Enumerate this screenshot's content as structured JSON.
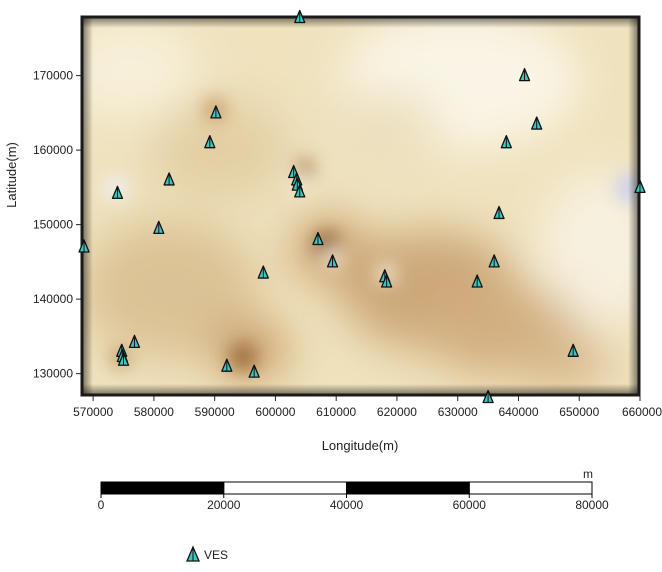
{
  "map": {
    "x_axis": {
      "label": "Longitude(m)",
      "min": 568000,
      "max": 660000,
      "ticks": [
        "570000",
        "580000",
        "590000",
        "600000",
        "610000",
        "620000",
        "630000",
        "640000",
        "650000",
        "660000"
      ],
      "tick_values": [
        570000,
        580000,
        590000,
        600000,
        610000,
        620000,
        630000,
        640000,
        650000,
        660000
      ]
    },
    "y_axis": {
      "label": "Latitude(m)",
      "min": 127000,
      "max": 178000,
      "ticks": [
        "130000",
        "140000",
        "150000",
        "160000",
        "170000"
      ],
      "tick_values": [
        130000,
        140000,
        150000,
        160000,
        170000
      ]
    },
    "colors": {
      "surface_base": "#efe2bd",
      "surface_dark": "#b58a52",
      "surface_light": "#fbf7ea",
      "surface_blue": "#dde0f6",
      "marker_fill": "#3fc6c0",
      "marker_stroke": "#111111",
      "frame": "#1a1a1a"
    },
    "ves_points": [
      {
        "x": 604000,
        "y": 177800
      },
      {
        "x": 641000,
        "y": 170000
      },
      {
        "x": 590200,
        "y": 165000
      },
      {
        "x": 643000,
        "y": 163500
      },
      {
        "x": 589200,
        "y": 161000
      },
      {
        "x": 638000,
        "y": 161000
      },
      {
        "x": 603000,
        "y": 157000
      },
      {
        "x": 603500,
        "y": 156000
      },
      {
        "x": 582500,
        "y": 156000
      },
      {
        "x": 603600,
        "y": 155300
      },
      {
        "x": 604000,
        "y": 154400
      },
      {
        "x": 574000,
        "y": 154200
      },
      {
        "x": 660000,
        "y": 155000
      },
      {
        "x": 636800,
        "y": 151500
      },
      {
        "x": 580800,
        "y": 149500
      },
      {
        "x": 607000,
        "y": 148000
      },
      {
        "x": 568500,
        "y": 147000
      },
      {
        "x": 609400,
        "y": 145000
      },
      {
        "x": 636000,
        "y": 145000
      },
      {
        "x": 598000,
        "y": 143500
      },
      {
        "x": 618000,
        "y": 143000
      },
      {
        "x": 618300,
        "y": 142300
      },
      {
        "x": 633200,
        "y": 142300
      },
      {
        "x": 576800,
        "y": 134200
      },
      {
        "x": 574700,
        "y": 133000
      },
      {
        "x": 574800,
        "y": 132300
      },
      {
        "x": 575000,
        "y": 131800
      },
      {
        "x": 649000,
        "y": 133000
      },
      {
        "x": 592000,
        "y": 131000
      },
      {
        "x": 596500,
        "y": 130200
      },
      {
        "x": 635000,
        "y": 126800
      }
    ]
  },
  "scale_bar": {
    "unit": "m",
    "max": 80000,
    "labels": [
      "0",
      "20000",
      "40000",
      "60000",
      "80000"
    ],
    "values": [
      0,
      20000,
      40000,
      60000,
      80000
    ]
  },
  "legend": {
    "label": "VES",
    "icon": "triangle-marker-icon"
  }
}
